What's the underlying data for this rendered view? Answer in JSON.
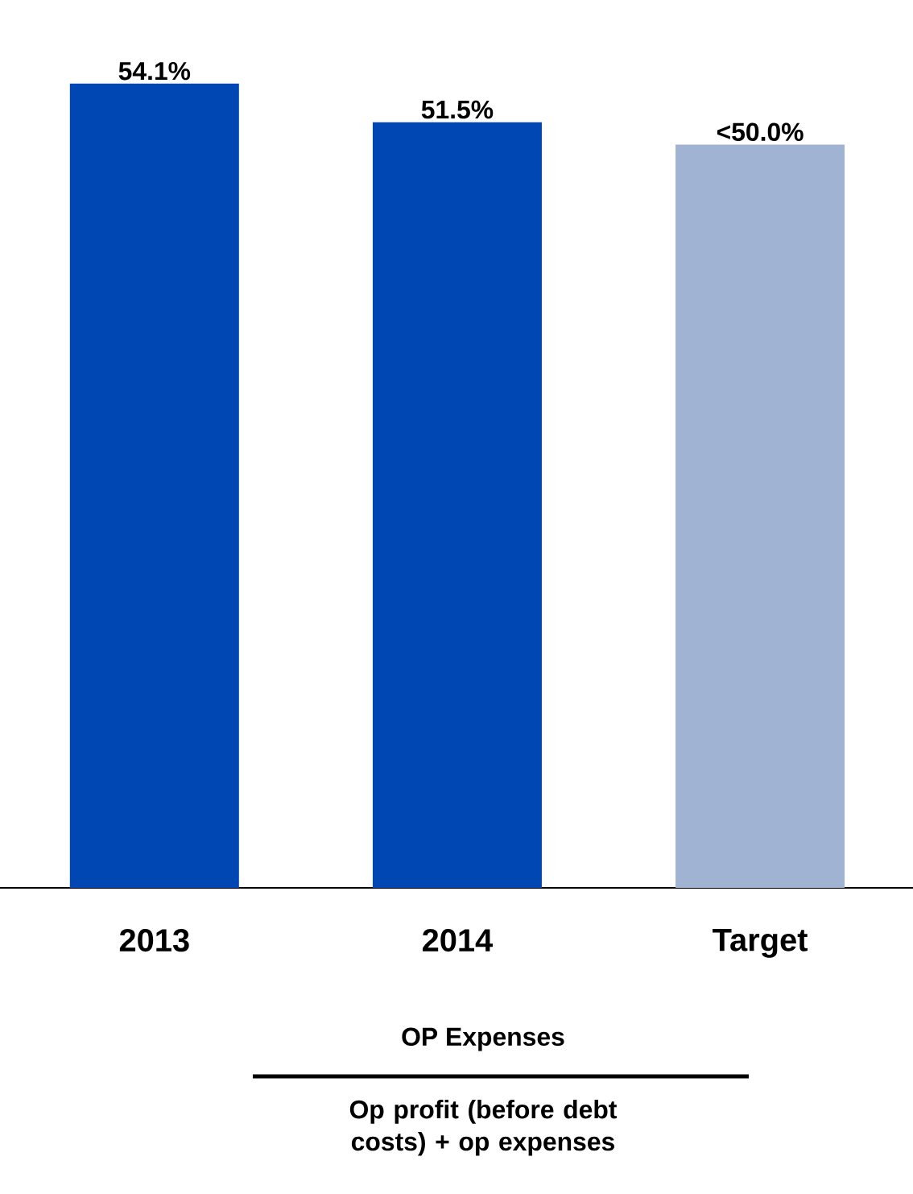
{
  "chart_data": {
    "type": "bar",
    "categories": [
      "2013",
      "2014",
      "Target"
    ],
    "values": [
      54.1,
      51.5,
      50.0
    ],
    "value_labels": [
      "54.1%",
      "51.5%",
      "<50.0%"
    ],
    "colors": [
      "#0047b3",
      "#0047b3",
      "#a0b3d2"
    ],
    "annotations": [
      "OP Expenses",
      "Op profit (before debt costs) + op  expenses"
    ]
  }
}
